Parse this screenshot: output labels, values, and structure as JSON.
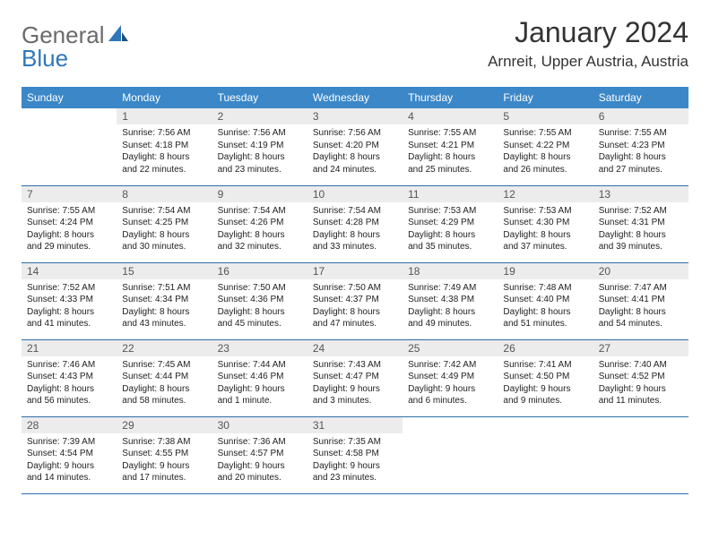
{
  "header": {
    "logo_part1": "General",
    "logo_part2": "Blue",
    "title": "January 2024",
    "location": "Arnreit, Upper Austria, Austria"
  },
  "colors": {
    "header_bg": "#3b87c8",
    "header_text": "#ffffff",
    "daynum_bg": "#ececec",
    "daynum_text": "#555555",
    "body_text": "#222222",
    "row_border": "#2f6fa8",
    "logo_gray": "#6a6a6a",
    "logo_blue": "#2f77bb"
  },
  "calendar": {
    "days_of_week": [
      "Sunday",
      "Monday",
      "Tuesday",
      "Wednesday",
      "Thursday",
      "Friday",
      "Saturday"
    ],
    "weeks": [
      [
        {
          "n": "",
          "sr": "",
          "ss": "",
          "dl": ""
        },
        {
          "n": "1",
          "sr": "Sunrise: 7:56 AM",
          "ss": "Sunset: 4:18 PM",
          "dl": "Daylight: 8 hours and 22 minutes."
        },
        {
          "n": "2",
          "sr": "Sunrise: 7:56 AM",
          "ss": "Sunset: 4:19 PM",
          "dl": "Daylight: 8 hours and 23 minutes."
        },
        {
          "n": "3",
          "sr": "Sunrise: 7:56 AM",
          "ss": "Sunset: 4:20 PM",
          "dl": "Daylight: 8 hours and 24 minutes."
        },
        {
          "n": "4",
          "sr": "Sunrise: 7:55 AM",
          "ss": "Sunset: 4:21 PM",
          "dl": "Daylight: 8 hours and 25 minutes."
        },
        {
          "n": "5",
          "sr": "Sunrise: 7:55 AM",
          "ss": "Sunset: 4:22 PM",
          "dl": "Daylight: 8 hours and 26 minutes."
        },
        {
          "n": "6",
          "sr": "Sunrise: 7:55 AM",
          "ss": "Sunset: 4:23 PM",
          "dl": "Daylight: 8 hours and 27 minutes."
        }
      ],
      [
        {
          "n": "7",
          "sr": "Sunrise: 7:55 AM",
          "ss": "Sunset: 4:24 PM",
          "dl": "Daylight: 8 hours and 29 minutes."
        },
        {
          "n": "8",
          "sr": "Sunrise: 7:54 AM",
          "ss": "Sunset: 4:25 PM",
          "dl": "Daylight: 8 hours and 30 minutes."
        },
        {
          "n": "9",
          "sr": "Sunrise: 7:54 AM",
          "ss": "Sunset: 4:26 PM",
          "dl": "Daylight: 8 hours and 32 minutes."
        },
        {
          "n": "10",
          "sr": "Sunrise: 7:54 AM",
          "ss": "Sunset: 4:28 PM",
          "dl": "Daylight: 8 hours and 33 minutes."
        },
        {
          "n": "11",
          "sr": "Sunrise: 7:53 AM",
          "ss": "Sunset: 4:29 PM",
          "dl": "Daylight: 8 hours and 35 minutes."
        },
        {
          "n": "12",
          "sr": "Sunrise: 7:53 AM",
          "ss": "Sunset: 4:30 PM",
          "dl": "Daylight: 8 hours and 37 minutes."
        },
        {
          "n": "13",
          "sr": "Sunrise: 7:52 AM",
          "ss": "Sunset: 4:31 PM",
          "dl": "Daylight: 8 hours and 39 minutes."
        }
      ],
      [
        {
          "n": "14",
          "sr": "Sunrise: 7:52 AM",
          "ss": "Sunset: 4:33 PM",
          "dl": "Daylight: 8 hours and 41 minutes."
        },
        {
          "n": "15",
          "sr": "Sunrise: 7:51 AM",
          "ss": "Sunset: 4:34 PM",
          "dl": "Daylight: 8 hours and 43 minutes."
        },
        {
          "n": "16",
          "sr": "Sunrise: 7:50 AM",
          "ss": "Sunset: 4:36 PM",
          "dl": "Daylight: 8 hours and 45 minutes."
        },
        {
          "n": "17",
          "sr": "Sunrise: 7:50 AM",
          "ss": "Sunset: 4:37 PM",
          "dl": "Daylight: 8 hours and 47 minutes."
        },
        {
          "n": "18",
          "sr": "Sunrise: 7:49 AM",
          "ss": "Sunset: 4:38 PM",
          "dl": "Daylight: 8 hours and 49 minutes."
        },
        {
          "n": "19",
          "sr": "Sunrise: 7:48 AM",
          "ss": "Sunset: 4:40 PM",
          "dl": "Daylight: 8 hours and 51 minutes."
        },
        {
          "n": "20",
          "sr": "Sunrise: 7:47 AM",
          "ss": "Sunset: 4:41 PM",
          "dl": "Daylight: 8 hours and 54 minutes."
        }
      ],
      [
        {
          "n": "21",
          "sr": "Sunrise: 7:46 AM",
          "ss": "Sunset: 4:43 PM",
          "dl": "Daylight: 8 hours and 56 minutes."
        },
        {
          "n": "22",
          "sr": "Sunrise: 7:45 AM",
          "ss": "Sunset: 4:44 PM",
          "dl": "Daylight: 8 hours and 58 minutes."
        },
        {
          "n": "23",
          "sr": "Sunrise: 7:44 AM",
          "ss": "Sunset: 4:46 PM",
          "dl": "Daylight: 9 hours and 1 minute."
        },
        {
          "n": "24",
          "sr": "Sunrise: 7:43 AM",
          "ss": "Sunset: 4:47 PM",
          "dl": "Daylight: 9 hours and 3 minutes."
        },
        {
          "n": "25",
          "sr": "Sunrise: 7:42 AM",
          "ss": "Sunset: 4:49 PM",
          "dl": "Daylight: 9 hours and 6 minutes."
        },
        {
          "n": "26",
          "sr": "Sunrise: 7:41 AM",
          "ss": "Sunset: 4:50 PM",
          "dl": "Daylight: 9 hours and 9 minutes."
        },
        {
          "n": "27",
          "sr": "Sunrise: 7:40 AM",
          "ss": "Sunset: 4:52 PM",
          "dl": "Daylight: 9 hours and 11 minutes."
        }
      ],
      [
        {
          "n": "28",
          "sr": "Sunrise: 7:39 AM",
          "ss": "Sunset: 4:54 PM",
          "dl": "Daylight: 9 hours and 14 minutes."
        },
        {
          "n": "29",
          "sr": "Sunrise: 7:38 AM",
          "ss": "Sunset: 4:55 PM",
          "dl": "Daylight: 9 hours and 17 minutes."
        },
        {
          "n": "30",
          "sr": "Sunrise: 7:36 AM",
          "ss": "Sunset: 4:57 PM",
          "dl": "Daylight: 9 hours and 20 minutes."
        },
        {
          "n": "31",
          "sr": "Sunrise: 7:35 AM",
          "ss": "Sunset: 4:58 PM",
          "dl": "Daylight: 9 hours and 23 minutes."
        },
        {
          "n": "",
          "sr": "",
          "ss": "",
          "dl": ""
        },
        {
          "n": "",
          "sr": "",
          "ss": "",
          "dl": ""
        },
        {
          "n": "",
          "sr": "",
          "ss": "",
          "dl": ""
        }
      ]
    ]
  }
}
